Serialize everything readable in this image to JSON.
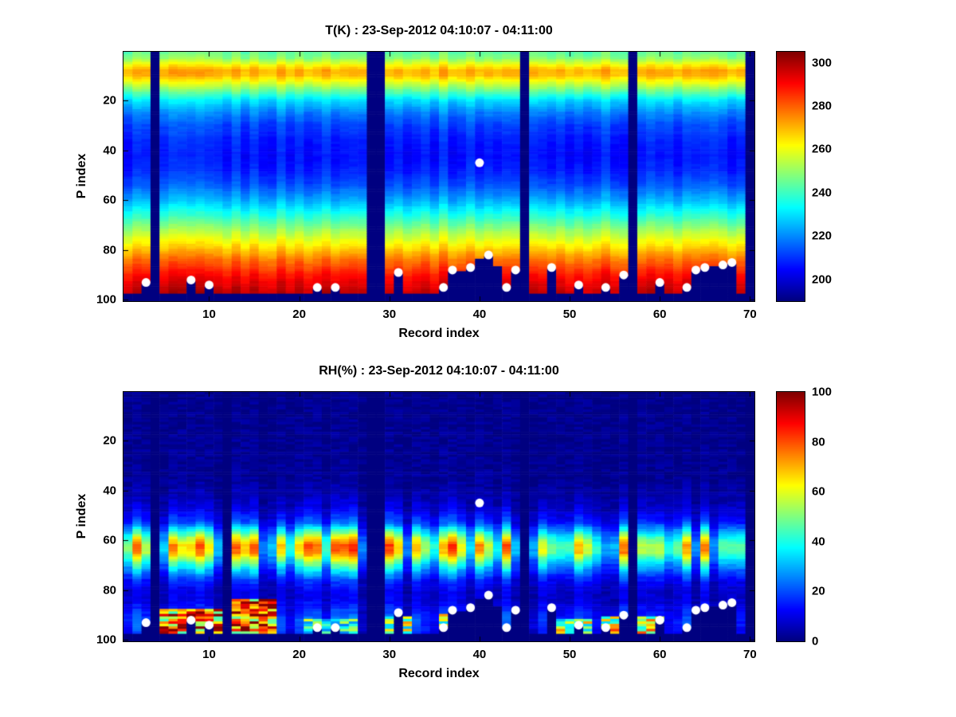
{
  "figure": {
    "background": "#ffffff",
    "marker_color": "#ffffff",
    "axis_color": "#000000"
  },
  "chart_data": [
    {
      "type": "heatmap",
      "title": "T(K) : 23-Sep-2012 04:10:07 - 04:11:00",
      "xlabel": "Record index",
      "ylabel": "P index",
      "colormap": "jet",
      "x_range": [
        1,
        70
      ],
      "y_range": [
        1,
        100
      ],
      "y_direction": "down",
      "x_ticks": [
        10,
        20,
        30,
        40,
        50,
        60,
        70
      ],
      "y_ticks": [
        20,
        40,
        60,
        80,
        100
      ],
      "clim": [
        190,
        305
      ],
      "colorbar_ticks": [
        200,
        220,
        240,
        260,
        280,
        300
      ],
      "profile_p_value": [
        [
          1,
          245
        ],
        [
          3,
          249
        ],
        [
          6,
          263
        ],
        [
          8,
          271
        ],
        [
          10,
          270
        ],
        [
          13,
          258
        ],
        [
          16,
          246
        ],
        [
          20,
          230
        ],
        [
          25,
          219
        ],
        [
          30,
          212
        ],
        [
          36,
          208
        ],
        [
          42,
          206
        ],
        [
          48,
          208
        ],
        [
          54,
          214
        ],
        [
          60,
          224
        ],
        [
          66,
          237
        ],
        [
          72,
          251
        ],
        [
          78,
          264
        ],
        [
          84,
          278
        ],
        [
          90,
          289
        ],
        [
          95,
          296
        ],
        [
          100,
          300
        ]
      ],
      "missing_columns": [
        4,
        28,
        29,
        45,
        57,
        70
      ],
      "default_surface_p": 97,
      "surface_overrides": {
        "38": 88,
        "40": 83,
        "42": 86,
        "66": 86
      },
      "markers": [
        [
          3,
          93
        ],
        [
          8,
          92
        ],
        [
          10,
          94
        ],
        [
          22,
          95
        ],
        [
          24,
          95
        ],
        [
          31,
          89
        ],
        [
          36,
          95
        ],
        [
          37,
          88
        ],
        [
          39,
          87
        ],
        [
          40,
          45
        ],
        [
          41,
          82
        ],
        [
          43,
          95
        ],
        [
          44,
          88
        ],
        [
          48,
          87
        ],
        [
          51,
          94
        ],
        [
          54,
          95
        ],
        [
          56,
          90
        ],
        [
          60,
          93
        ],
        [
          63,
          95
        ],
        [
          64,
          88
        ],
        [
          65,
          87
        ],
        [
          67,
          86
        ],
        [
          68,
          85
        ]
      ]
    },
    {
      "type": "heatmap",
      "title": "RH(%) : 23-Sep-2012 04:10:07 - 04:11:00",
      "xlabel": "Record index",
      "ylabel": "P index",
      "colormap": "jet",
      "x_range": [
        1,
        70
      ],
      "y_range": [
        1,
        100
      ],
      "y_direction": "down",
      "x_ticks": [
        10,
        20,
        30,
        40,
        50,
        60,
        70
      ],
      "y_ticks": [
        20,
        40,
        60,
        80,
        100
      ],
      "clim": [
        0,
        100
      ],
      "colorbar_ticks": [
        0,
        20,
        40,
        60,
        80,
        100
      ],
      "profile_p_value": [
        [
          1,
          1
        ],
        [
          35,
          2
        ],
        [
          42,
          4
        ],
        [
          48,
          8
        ],
        [
          53,
          16
        ],
        [
          56,
          28
        ],
        [
          59,
          42
        ],
        [
          62,
          52
        ],
        [
          65,
          50
        ],
        [
          68,
          38
        ],
        [
          72,
          24
        ],
        [
          76,
          13
        ],
        [
          80,
          8
        ],
        [
          84,
          8
        ],
        [
          88,
          12
        ],
        [
          92,
          16
        ],
        [
          96,
          14
        ],
        [
          100,
          8
        ]
      ],
      "missing_columns": [
        4,
        12,
        28,
        29,
        45,
        57,
        70
      ],
      "default_surface_p": 97,
      "surface_overrides": {
        "38": 88,
        "40": 83,
        "42": 86,
        "66": 86
      },
      "patches": [
        {
          "records": [
            5,
            11
          ],
          "p": [
            88,
            97
          ],
          "value": 78
        },
        {
          "records": [
            13,
            17
          ],
          "p": [
            84,
            97
          ],
          "value": 82
        },
        {
          "records": [
            21,
            26
          ],
          "p": [
            92,
            97
          ],
          "value": 45
        },
        {
          "records": [
            30,
            32
          ],
          "p": [
            91,
            97
          ],
          "value": 55
        },
        {
          "records": [
            36,
            38
          ],
          "p": [
            90,
            97
          ],
          "value": 60
        },
        {
          "records": [
            49,
            52
          ],
          "p": [
            92,
            97
          ],
          "value": 55
        },
        {
          "records": [
            54,
            60
          ],
          "p": [
            91,
            97
          ],
          "value": 62
        }
      ],
      "markers": [
        [
          3,
          93
        ],
        [
          8,
          92
        ],
        [
          10,
          94
        ],
        [
          22,
          95
        ],
        [
          24,
          95
        ],
        [
          31,
          89
        ],
        [
          36,
          95
        ],
        [
          37,
          88
        ],
        [
          39,
          87
        ],
        [
          40,
          45
        ],
        [
          41,
          82
        ],
        [
          43,
          95
        ],
        [
          44,
          88
        ],
        [
          48,
          87
        ],
        [
          51,
          94
        ],
        [
          54,
          95
        ],
        [
          56,
          90
        ],
        [
          60,
          92
        ],
        [
          63,
          95
        ],
        [
          64,
          88
        ],
        [
          65,
          87
        ],
        [
          67,
          86
        ],
        [
          68,
          85
        ]
      ]
    }
  ]
}
